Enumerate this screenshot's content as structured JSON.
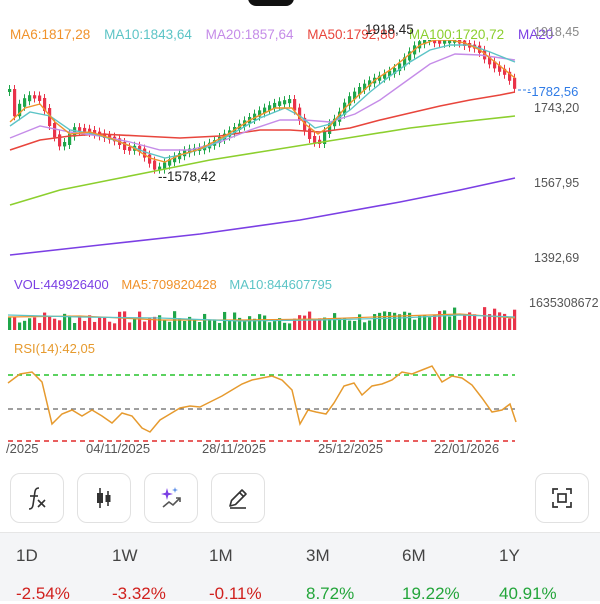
{
  "ma_legend": [
    {
      "label": "MA6:1817,28",
      "color": "#f0922b"
    },
    {
      "label": "MA10:1843,64",
      "color": "#5cc4c6"
    },
    {
      "label": "MA20:1857,64",
      "color": "#c58ce8"
    },
    {
      "label": "MA50:1792,80",
      "color": "#e8453c"
    },
    {
      "label": "MA100:1720,72",
      "color": "#8ccf2e"
    },
    {
      "label": "MA20",
      "color": "#7b3fe4"
    }
  ],
  "price_chart": {
    "high_marker": "1918,45",
    "low_marker": "1578,42",
    "current_price": "1782,56",
    "axis_ticks": [
      "1918,45",
      "1743,20",
      "1567,95",
      "1392,69"
    ]
  },
  "volume": {
    "vol_label": "VOL:449926400",
    "ma5_label": "MA5:709820428",
    "ma10_label": "MA10:844607795",
    "max_label": "1635308672",
    "colors": {
      "vol": "#7b3fe4",
      "ma5": "#f0922b",
      "ma10": "#5cc4c6"
    }
  },
  "rsi": {
    "label": "RSI(14):42,05",
    "color": "#e69a2e"
  },
  "dates": [
    "/2025",
    "04/11/2025",
    "28/11/2025",
    "25/12/2025",
    "22/01/2026"
  ],
  "toolbar": [
    {
      "name": "formula-icon-button",
      "icon": "fx"
    },
    {
      "name": "candlestick-icon-button",
      "icon": "candles"
    },
    {
      "name": "ai-sparkle-icon-button",
      "icon": "sparkle"
    },
    {
      "name": "draw-pen-icon-button",
      "icon": "pen"
    },
    {
      "name": "screenshot-icon-button",
      "icon": "scan"
    }
  ],
  "periods": [
    {
      "label": "1D",
      "value": "-2.54%",
      "color": "#d0201d"
    },
    {
      "label": "1W",
      "value": "-3.32%",
      "color": "#d0201d"
    },
    {
      "label": "1M",
      "value": "-0.11%",
      "color": "#d0201d"
    },
    {
      "label": "3M",
      "value": "8.72%",
      "color": "#23a53a"
    },
    {
      "label": "6M",
      "value": "19.22%",
      "color": "#23a53a"
    },
    {
      "label": "1Y",
      "value": "40.91%",
      "color": "#23a53a"
    }
  ]
}
